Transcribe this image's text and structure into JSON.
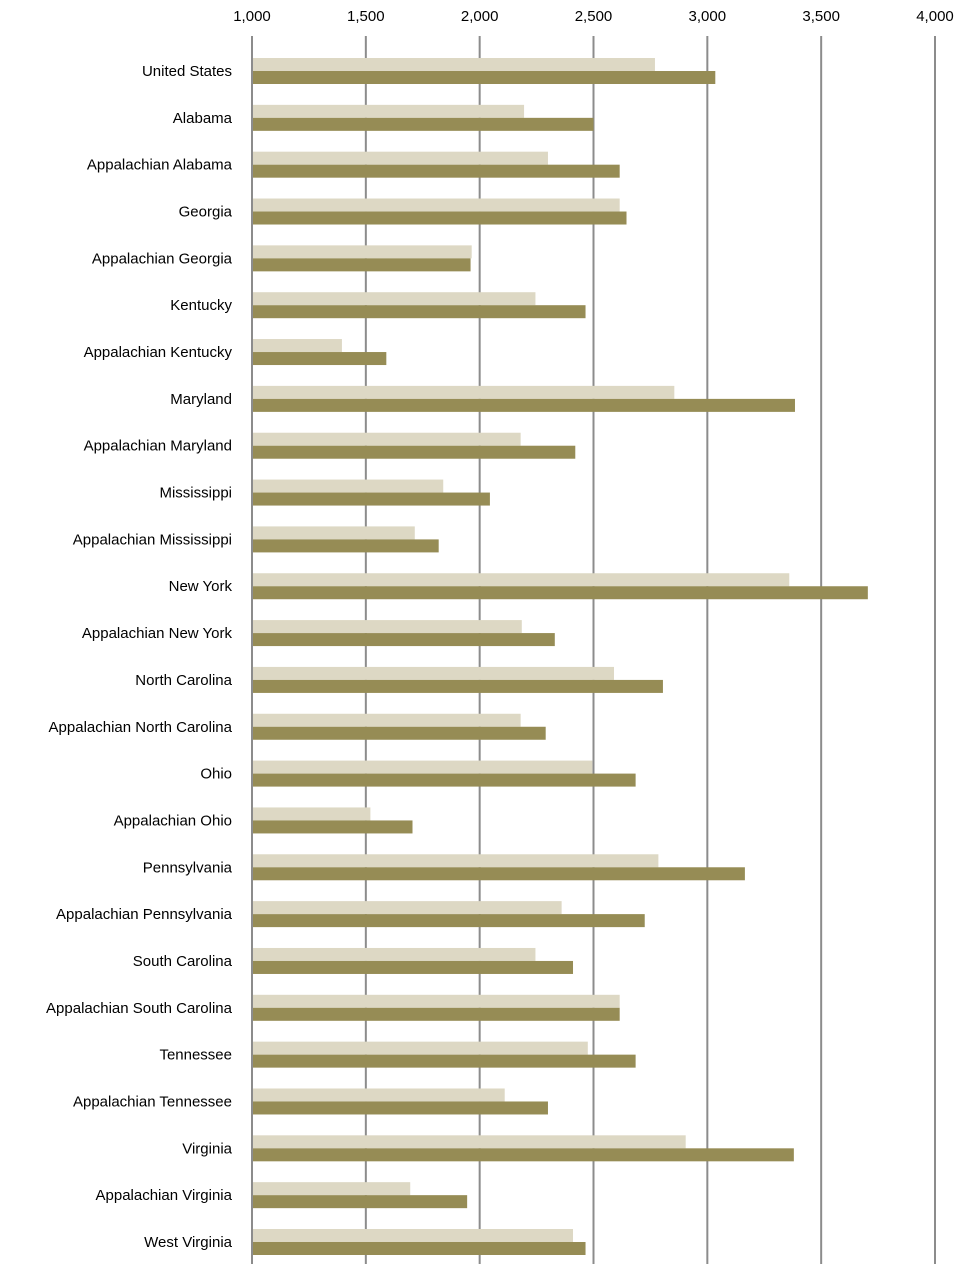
{
  "chart_data": {
    "type": "bar",
    "orientation": "horizontal",
    "title": "",
    "xlabel": "",
    "ylabel": "",
    "xlim": [
      1000,
      4000
    ],
    "x_ticks": [
      1000,
      1500,
      2000,
      2500,
      3000,
      3500,
      4000
    ],
    "x_tick_labels": [
      "1,000",
      "1,500",
      "2,000",
      "2,500",
      "3,000",
      "3,500",
      "4,000"
    ],
    "axis_position": "top",
    "grid": true,
    "legend": "none",
    "categories": [
      "United States",
      "Alabama",
      "Appalachian Alabama",
      "Georgia",
      "Appalachian Georgia",
      "Kentucky",
      "Appalachian Kentucky",
      "Maryland",
      "Appalachian Maryland",
      "Mississippi",
      "Appalachian Mississippi",
      "New York",
      "Appalachian New York",
      "North Carolina",
      "Appalachian North Carolina",
      "Ohio",
      "Appalachian Ohio",
      "Pennsylvania",
      "Appalachian Pennsylvania",
      "South Carolina",
      "Appalachian South Carolina",
      "Tennessee",
      "Appalachian Tennessee",
      "Virginia",
      "Appalachian Virginia",
      "West Virginia"
    ],
    "series": [
      {
        "color": "#ddd8c4",
        "values": [
          2770,
          2195,
          2300,
          2615,
          1965,
          2245,
          1395,
          2855,
          2180,
          1840,
          1715,
          3360,
          2185,
          2590,
          2180,
          2495,
          1520,
          2785,
          2360,
          2245,
          2615,
          2475,
          2110,
          2905,
          1695,
          2410
        ]
      },
      {
        "color": "#968c55",
        "values": [
          3035,
          2500,
          2615,
          2645,
          1960,
          2465,
          1590,
          3385,
          2420,
          2045,
          1820,
          3705,
          2330,
          2805,
          2290,
          2685,
          1705,
          3165,
          2725,
          2410,
          2615,
          2685,
          2300,
          3380,
          1945,
          2465
        ]
      }
    ]
  }
}
